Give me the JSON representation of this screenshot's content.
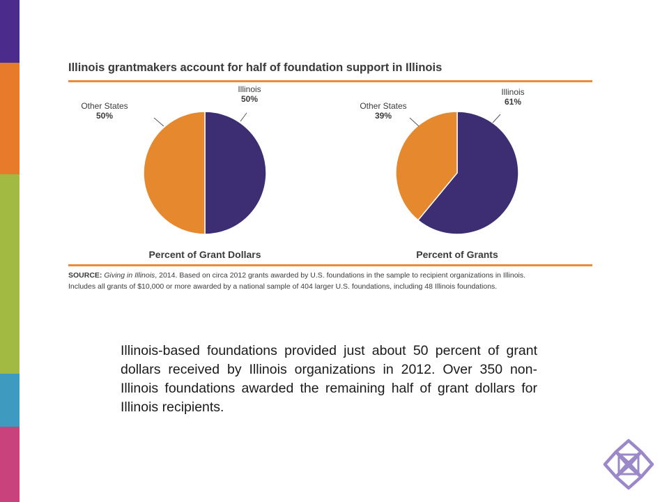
{
  "colors": {
    "stripes": [
      "#4b2c8c",
      "#e87a2c",
      "#a3ba42",
      "#3e9bbf",
      "#c9427b"
    ],
    "illinois": "#3d2d73",
    "other_states": "#e6892e",
    "rule": "#e98b3a",
    "logo": "#9b88c9"
  },
  "chart_title": "Illinois grantmakers account for half of foundation support in Illinois",
  "chart_data": [
    {
      "type": "pie",
      "title": "Percent of Grant Dollars",
      "slices": [
        {
          "label": "Illinois",
          "value": 50,
          "value_label": "50%"
        },
        {
          "label": "Other States",
          "value": 50,
          "value_label": "50%"
        }
      ]
    },
    {
      "type": "pie",
      "title": "Percent of Grants",
      "slices": [
        {
          "label": "Illinois",
          "value": 61,
          "value_label": "61%"
        },
        {
          "label": "Other States",
          "value": 39,
          "value_label": "39%"
        }
      ]
    }
  ],
  "source": {
    "label": "SOURCE:",
    "title": "Giving in Illinois",
    "line1_rest": ", 2014.  Based on circa 2012 grants awarded by U.S. foundations in the sample to recipient organizations in Illinois.",
    "line2": "Includes all grants of $10,000 or more awarded by a national sample of 404 larger U.S. foundations, including 48 Illinois foundations."
  },
  "body_text": "Illinois-based foundations provided just about 50 percent of grant dollars received by Illinois organizations in 2012. Over 350 non-Illinois foundations awarded the remaining half of grant dollars for Illinois recipients."
}
